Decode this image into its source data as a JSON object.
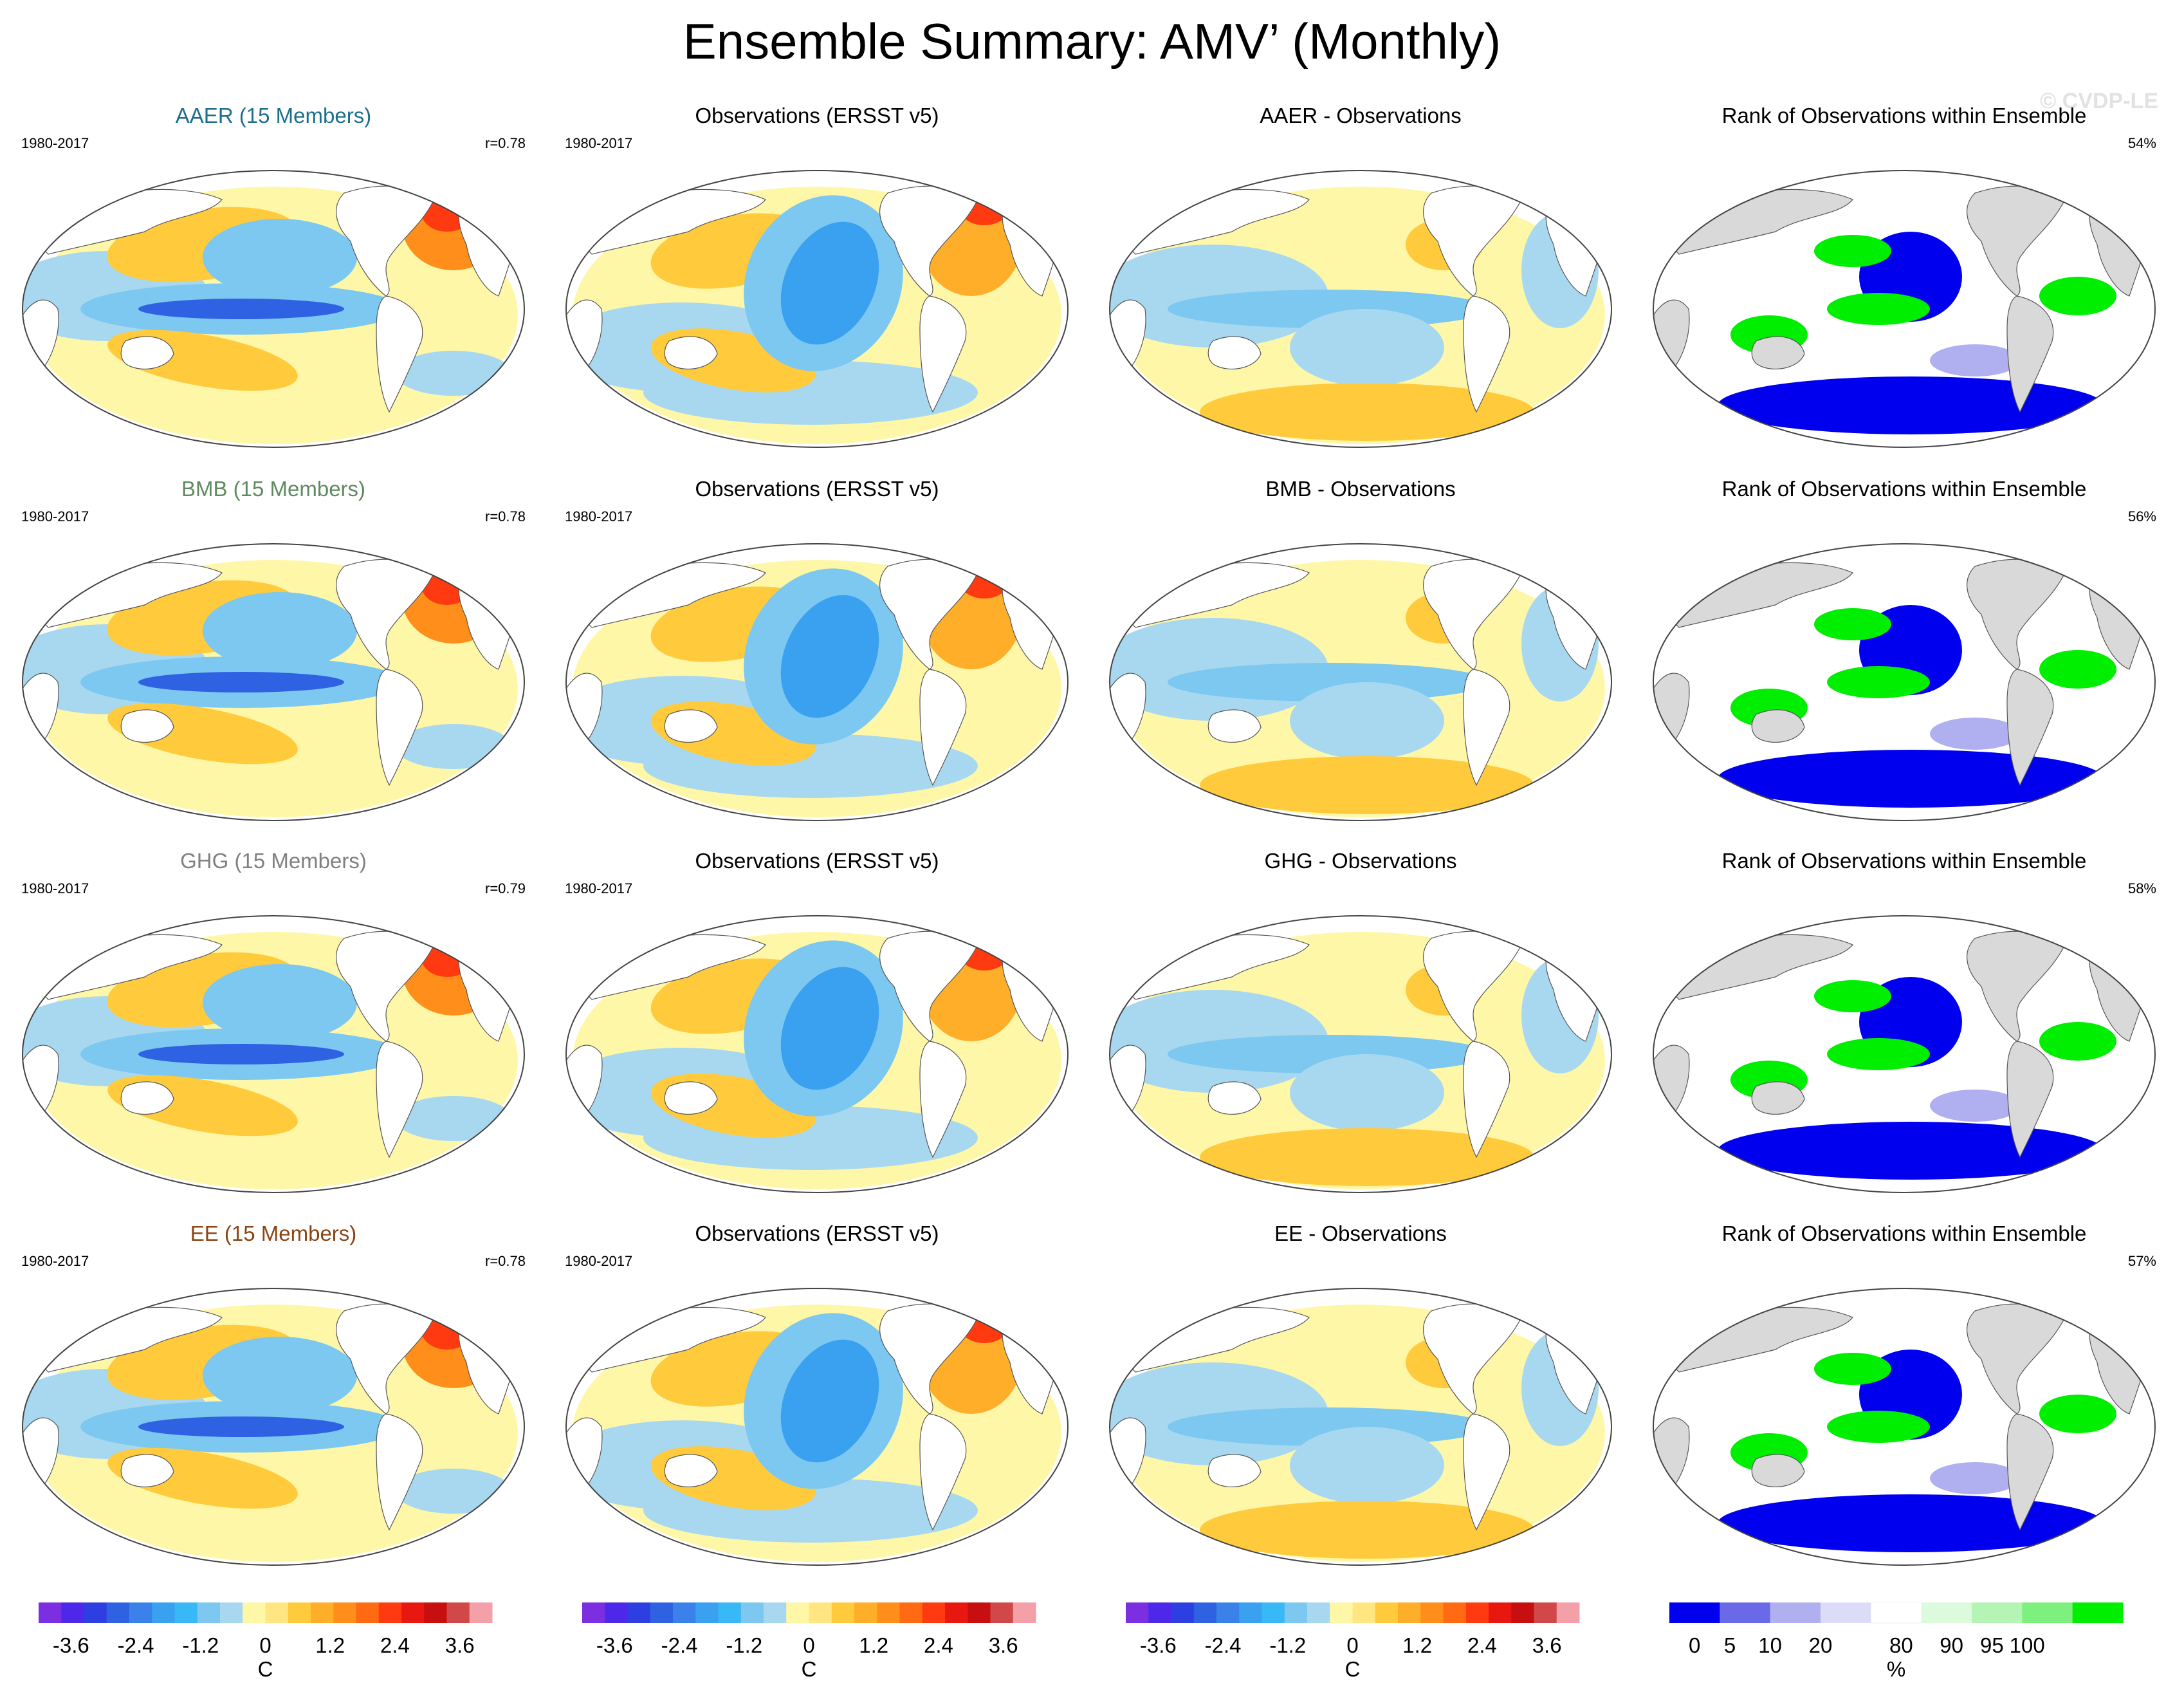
{
  "title": "Ensemble Summary: AMV’ (Monthly)",
  "watermark": "© CVDP-LE",
  "colors": {
    "aaer": "#1b6f8c",
    "bmb": "#5f8a5f",
    "ghg": "#808080",
    "ee": "#8b4513",
    "land_gray": "#d9d9d9"
  },
  "chart_data": {
    "type": "heatmap",
    "rows": [
      {
        "ensemble": {
          "title": "AAER (15 Members)",
          "period": "1980-2017",
          "r": "r=0.78",
          "color_key": "aaer"
        },
        "observations": {
          "title": "Observations (ERSST v5)",
          "period": "1980-2017"
        },
        "difference": {
          "title": "AAER - Observations"
        },
        "rank": {
          "title": "Rank of Observations within Ensemble",
          "percent": "54%"
        }
      },
      {
        "ensemble": {
          "title": "BMB (15 Members)",
          "period": "1980-2017",
          "r": "r=0.78",
          "color_key": "bmb"
        },
        "observations": {
          "title": "Observations (ERSST v5)",
          "period": "1980-2017"
        },
        "difference": {
          "title": "BMB - Observations"
        },
        "rank": {
          "title": "Rank of Observations within Ensemble",
          "percent": "56%"
        }
      },
      {
        "ensemble": {
          "title": "GHG (15 Members)",
          "period": "1980-2017",
          "r": "r=0.79",
          "color_key": "ghg"
        },
        "observations": {
          "title": "Observations (ERSST v5)",
          "period": "1980-2017"
        },
        "difference": {
          "title": "GHG - Observations"
        },
        "rank": {
          "title": "Rank of Observations within Ensemble",
          "percent": "58%"
        }
      },
      {
        "ensemble": {
          "title": "EE (15 Members)",
          "period": "1980-2017",
          "r": "r=0.78",
          "color_key": "ee"
        },
        "observations": {
          "title": "Observations (ERSST v5)",
          "period": "1980-2017"
        },
        "difference": {
          "title": "EE - Observations"
        },
        "rank": {
          "title": "Rank of Observations within Ensemble",
          "percent": "57%"
        }
      }
    ],
    "temperature_colorbar": {
      "unit": "C",
      "tick_labels": [
        "-3.6",
        "-2.4",
        "-1.2",
        "0",
        "1.2",
        "2.4",
        "3.6"
      ],
      "tick_values": [
        -3.6,
        -2.4,
        -1.2,
        0,
        1.2,
        2.4,
        3.6
      ],
      "range": [
        -4.2,
        4.2
      ],
      "colors": [
        "#7b2fe0",
        "#4d28e8",
        "#2d3fe0",
        "#2f62e3",
        "#3a82ea",
        "#3aa0f0",
        "#38b8f5",
        "#7cc8f0",
        "#a8d8f0",
        "#fff7a8",
        "#ffe680",
        "#ffcb3c",
        "#ffae2a",
        "#ff8f1a",
        "#ff6a12",
        "#ff3a10",
        "#e81810",
        "#c80f0f",
        "#d04848",
        "#f4a0a8"
      ]
    },
    "rank_colorbar": {
      "unit": "%",
      "tick_labels": [
        "0",
        "5",
        "10",
        "20",
        "80",
        "90",
        "95",
        "100"
      ],
      "colors": [
        "#0000ee",
        "#6a6ae8",
        "#b0b0f0",
        "#dcdcf8",
        "#ffffff",
        "#dcfadc",
        "#b4f4b4",
        "#7ef07e",
        "#00ee00"
      ]
    }
  }
}
